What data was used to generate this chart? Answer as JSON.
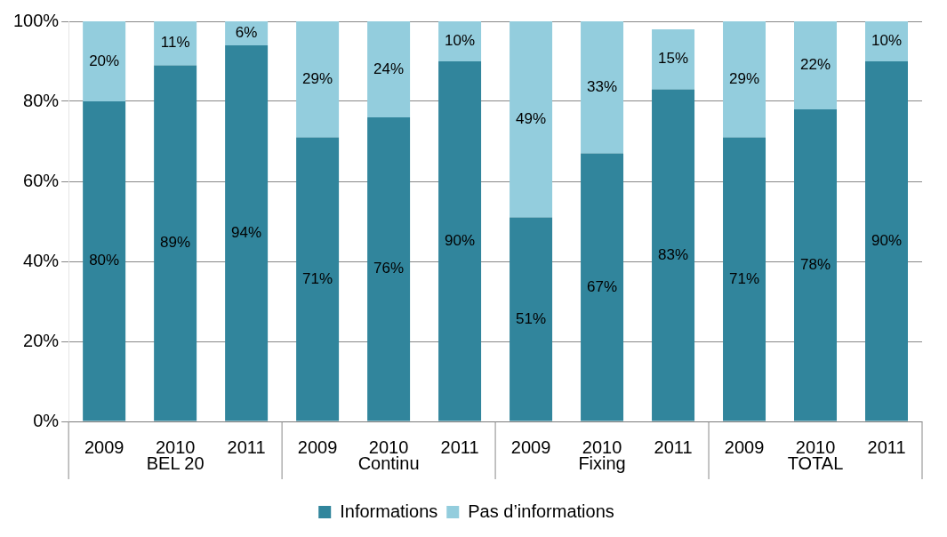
{
  "chart_data": {
    "type": "bar",
    "stacked": true,
    "categories": [
      "2009",
      "2010",
      "2011",
      "2009",
      "2010",
      "2011",
      "2009",
      "2010",
      "2011",
      "2009",
      "2010",
      "2011"
    ],
    "series": [
      {
        "name": "Informations",
        "color": "#31859c",
        "values": [
          80,
          89,
          94,
          71,
          76,
          90,
          51,
          67,
          83,
          71,
          78,
          90
        ],
        "value_labels": [
          "80%",
          "89%",
          "94%",
          "71%",
          "76%",
          "90%",
          "51%",
          "67%",
          "83%",
          "71%",
          "78%",
          "90%"
        ]
      },
      {
        "name": "Pas d’informations",
        "color": "#93cddd",
        "values": [
          20,
          11,
          6,
          29,
          24,
          10,
          49,
          33,
          15,
          29,
          22,
          10
        ],
        "value_labels": [
          "20%",
          "11%",
          "6%",
          "29%",
          "24%",
          "10%",
          "49%",
          "33%",
          "15%",
          "29%",
          "22%",
          "10%"
        ]
      }
    ],
    "annotations": [
      "BEL 20",
      "Continu",
      "Fixing",
      "TOTAL"
    ],
    "ylim": [
      0,
      100
    ],
    "yticks": [
      {
        "value": 0,
        "label": "0%"
      },
      {
        "value": 20,
        "label": "20%"
      },
      {
        "value": 40,
        "label": "40%"
      },
      {
        "value": 60,
        "label": "60%"
      },
      {
        "value": 80,
        "label": "80%"
      },
      {
        "value": 100,
        "label": "100%"
      }
    ],
    "grid": "y",
    "legend": "bottom"
  }
}
